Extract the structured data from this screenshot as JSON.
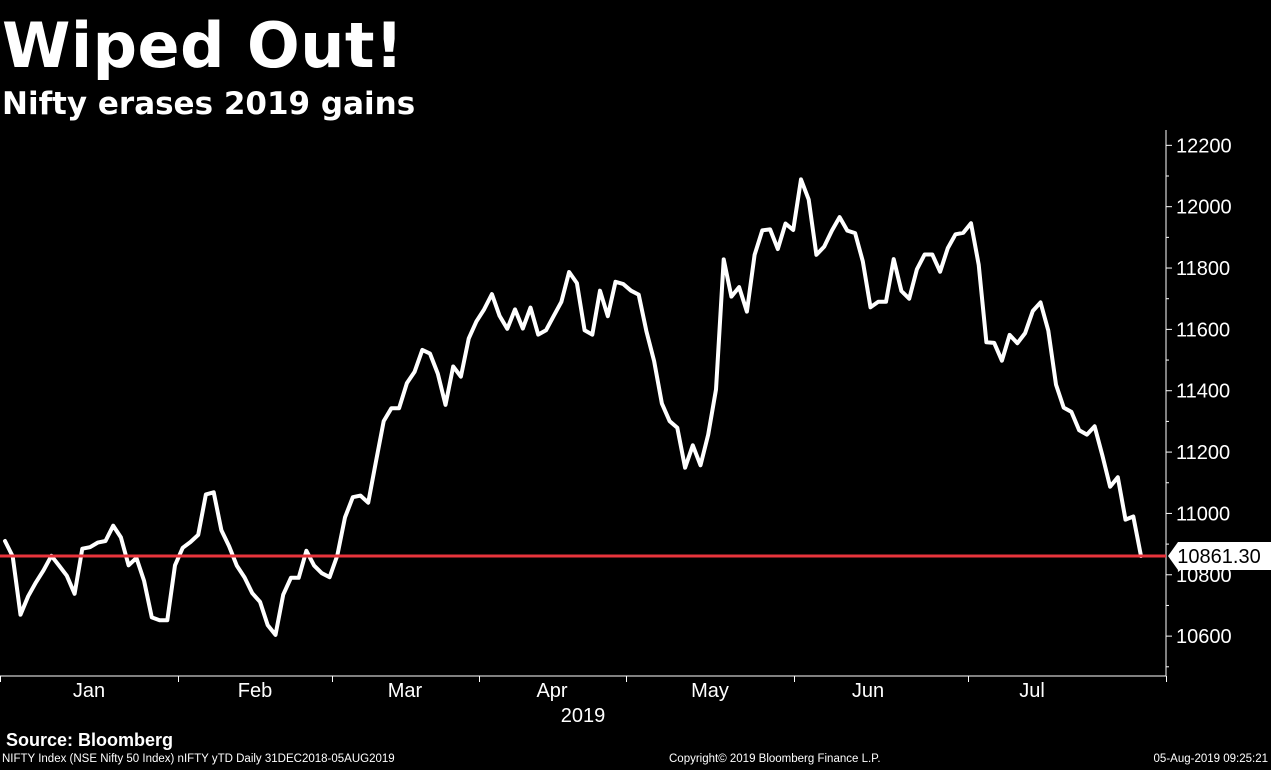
{
  "header": {
    "title": "Wiped Out!",
    "subtitle": "Nifty erases 2019 gains"
  },
  "footer": {
    "source": "Source: Bloomberg",
    "ticker_info": "NIFTY Index (NSE Nifty 50 Index) nIFTY yTD  Daily 31DEC2018-05AUG2019",
    "copyright": "Copyright© 2019 Bloomberg Finance L.P.",
    "timestamp": "05-Aug-2019 09:25:21"
  },
  "chart_data": {
    "type": "line",
    "title": "Wiped Out!",
    "subtitle": "Nifty erases 2019 gains",
    "x_axis": {
      "month_labels": [
        "Jan",
        "Feb",
        "Mar",
        "Apr",
        "May",
        "Jun",
        "Jul"
      ],
      "year_label": "2019"
    },
    "y_axis": {
      "ticks": [
        10600,
        10800,
        11000,
        11200,
        11400,
        11600,
        11800,
        12000,
        12200
      ],
      "ylim": [
        10470,
        12250
      ],
      "position": "right"
    },
    "reference_line": {
      "value": 10861.3,
      "label": "10861.30",
      "color": "#e8343c"
    },
    "line_color": "#ffffff",
    "series": [
      {
        "values": [
          10910,
          10860,
          10670,
          10730,
          10775,
          10815,
          10862,
          10830,
          10797,
          10738,
          10885,
          10890,
          10905,
          10910,
          10960,
          10922,
          10831,
          10855,
          10780,
          10661,
          10652,
          10652,
          10831,
          10888,
          10907,
          10930,
          11062,
          11069,
          10945,
          10893,
          10830,
          10791,
          10740,
          10712,
          10636,
          10604,
          10735,
          10790,
          10790,
          10878,
          10830,
          10805,
          10792,
          10863,
          10987,
          11053,
          11058,
          11035,
          11168,
          11301,
          11343,
          11343,
          11425,
          11462,
          11533,
          11521,
          11456,
          11354,
          11479,
          11446,
          11570,
          11626,
          11665,
          11715,
          11644,
          11602,
          11665,
          11603,
          11671,
          11583,
          11597,
          11644,
          11690,
          11787,
          11751,
          11597,
          11583,
          11726,
          11643,
          11755,
          11748,
          11726,
          11713,
          11594,
          11497,
          11358,
          11301,
          11279,
          11149,
          11222,
          11157,
          11257,
          11404,
          11828,
          11707,
          11738,
          11658,
          11843,
          11923,
          11926,
          11862,
          11945,
          11924,
          12089,
          12023,
          11843,
          11870,
          11922,
          11966,
          11922,
          11914,
          11822,
          11672,
          11690,
          11690,
          11829,
          11725,
          11700,
          11796,
          11844,
          11844,
          11788,
          11865,
          11910,
          11915,
          11946,
          11811,
          11558,
          11556,
          11498,
          11582,
          11555,
          11588,
          11660,
          11688,
          11596,
          11420,
          11345,
          11331,
          11271,
          11257,
          11284,
          11189,
          11087,
          11118,
          10980,
          10990,
          10861.3
        ]
      }
    ]
  }
}
